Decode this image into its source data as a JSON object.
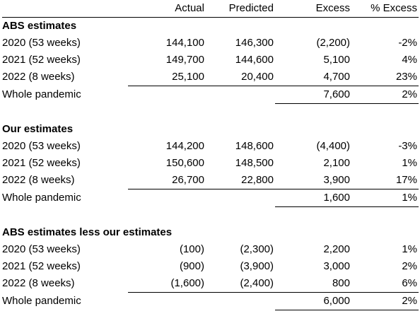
{
  "columns": [
    "",
    "Actual",
    "Predicted",
    "Excess",
    "% Excess"
  ],
  "sections": [
    {
      "title": "ABS estimates",
      "rows": [
        {
          "label": "2020 (53 weeks)",
          "actual": "144,100",
          "predicted": "146,300",
          "excess": "(2,200)",
          "pct": "-2%"
        },
        {
          "label": "2021 (52 weeks)",
          "actual": "149,700",
          "predicted": "144,600",
          "excess": "5,100",
          "pct": "4%"
        },
        {
          "label": "2022 (8 weeks)",
          "actual": "25,100",
          "predicted": "20,400",
          "excess": "4,700",
          "pct": "23%"
        }
      ],
      "total": {
        "label": "Whole pandemic",
        "excess": "7,600",
        "pct": "2%"
      }
    },
    {
      "title": "Our estimates",
      "rows": [
        {
          "label": "2020 (53 weeks)",
          "actual": "144,200",
          "predicted": "148,600",
          "excess": "(4,400)",
          "pct": "-3%"
        },
        {
          "label": "2021 (52 weeks)",
          "actual": "150,600",
          "predicted": "148,500",
          "excess": "2,100",
          "pct": "1%"
        },
        {
          "label": "2022 (8 weeks)",
          "actual": "26,700",
          "predicted": "22,800",
          "excess": "3,900",
          "pct": "17%"
        }
      ],
      "total": {
        "label": "Whole pandemic",
        "excess": "1,600",
        "pct": "1%"
      }
    },
    {
      "title": "ABS estimates less our estimates",
      "rows": [
        {
          "label": "2020 (53 weeks)",
          "actual": "(100)",
          "predicted": "(2,300)",
          "excess": "2,200",
          "pct": "1%"
        },
        {
          "label": "2021 (52 weeks)",
          "actual": "(900)",
          "predicted": "(3,900)",
          "excess": "3,000",
          "pct": "2%"
        },
        {
          "label": "2022 (8 weeks)",
          "actual": "(1,600)",
          "predicted": "(2,400)",
          "excess": "800",
          "pct": "6%"
        }
      ],
      "total": {
        "label": "Whole pandemic",
        "excess": "6,000",
        "pct": "2%"
      }
    }
  ]
}
